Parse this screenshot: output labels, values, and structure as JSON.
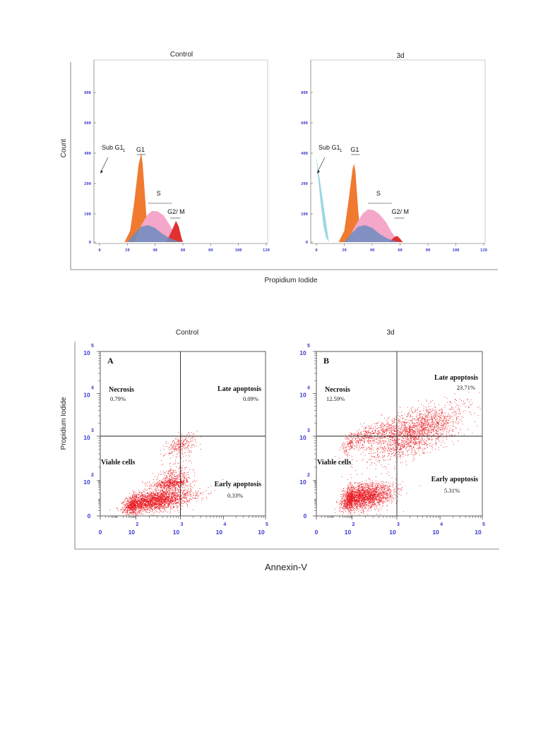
{
  "chart_data": [
    {
      "type": "area",
      "title": "Control",
      "xlabel": "Propidium Iodide",
      "ylabel": "Count",
      "xlim": [
        0,
        120
      ],
      "ylim": [
        0,
        1000
      ],
      "xticks": [
        "0",
        "20",
        "40",
        "60",
        "80",
        "100",
        "120"
      ],
      "yticks": [
        "0",
        "100",
        "200",
        "400",
        "600",
        "800"
      ],
      "phase_labels": [
        "Sub G1",
        "G1",
        "S",
        "G2/ M"
      ],
      "series": [
        {
          "name": "G1",
          "color": "#f07a30",
          "x": [
            18,
            22,
            25,
            28,
            30,
            31,
            33,
            35
          ],
          "values": [
            0,
            40,
            140,
            320,
            400,
            330,
            140,
            0
          ]
        },
        {
          "name": "S",
          "color": "#f4a7c8",
          "x": [
            25,
            30,
            35,
            38,
            42,
            46,
            50,
            54,
            56,
            58
          ],
          "values": [
            0,
            60,
            100,
            110,
            108,
            95,
            65,
            30,
            10,
            0
          ]
        },
        {
          "name": "G2/ M",
          "color": "#e03030",
          "x": [
            48,
            52,
            55,
            57,
            59,
            60
          ],
          "values": [
            0,
            40,
            75,
            55,
            15,
            0
          ]
        },
        {
          "name": "",
          "color": "#6c8cc0",
          "x": [
            20,
            25,
            30,
            35,
            40,
            45,
            50,
            55,
            60
          ],
          "values": [
            0,
            30,
            55,
            60,
            50,
            30,
            15,
            5,
            0
          ]
        }
      ]
    },
    {
      "type": "area",
      "title": "3d",
      "xlabel": "Propidium Iodide",
      "ylabel": "Count",
      "xlim": [
        0,
        120
      ],
      "ylim": [
        0,
        1000
      ],
      "xticks": [
        "0",
        "20",
        "40",
        "60",
        "80",
        "100",
        "120"
      ],
      "yticks": [
        "0",
        "100",
        "200",
        "400",
        "600",
        "800"
      ],
      "phase_labels": [
        "Sub G1",
        "G1",
        "S",
        "G2/ M"
      ],
      "series": [
        {
          "name": "Sub G1",
          "color": "#9ad8e4",
          "x": [
            0,
            1,
            3,
            5,
            7,
            9
          ],
          "values": [
            380,
            260,
            140,
            60,
            15,
            0
          ]
        },
        {
          "name": "G1",
          "color": "#f07a30",
          "x": [
            16,
            20,
            23,
            26,
            27,
            28,
            30,
            32
          ],
          "values": [
            0,
            40,
            140,
            300,
            330,
            280,
            110,
            0
          ]
        },
        {
          "name": "S",
          "color": "#f4a7c8",
          "x": [
            22,
            27,
            33,
            37,
            41,
            45,
            50,
            54,
            58,
            62
          ],
          "values": [
            0,
            50,
            100,
            115,
            112,
            100,
            70,
            35,
            10,
            0
          ]
        },
        {
          "name": "G2/ M",
          "color": "#e03030",
          "x": [
            52,
            56,
            58,
            60,
            62
          ],
          "values": [
            0,
            18,
            22,
            12,
            0
          ]
        },
        {
          "name": "",
          "color": "#6c8cc0",
          "x": [
            20,
            25,
            30,
            35,
            40,
            45,
            50,
            55,
            60
          ],
          "values": [
            0,
            30,
            55,
            60,
            50,
            30,
            15,
            5,
            0
          ]
        }
      ]
    },
    {
      "type": "scatter",
      "title": "Control",
      "panel": "A",
      "xlabel": "Annexin-V",
      "ylabel": "Propidium Iodide",
      "xlim": [
        0,
        5
      ],
      "ylim": [
        0,
        5
      ],
      "ticks": [
        "0",
        "2",
        "3",
        "4",
        "5"
      ],
      "tick_base": "10",
      "gate": [
        3,
        3
      ],
      "quadrants": {
        "necrosis": {
          "label": "Necrosis",
          "value": "0.79%"
        },
        "late": {
          "label": "Late apoptosis",
          "value": "0.09%"
        },
        "viable": {
          "label": "Viable cells",
          "value": ""
        },
        "early": {
          "label": "Early apoptosis",
          "value": "0.33%"
        }
      },
      "clusters": [
        {
          "cx": 2.35,
          "cy": 0.85,
          "sx": 0.45,
          "sy": 0.28,
          "n": 2600
        },
        {
          "cx": 2.8,
          "cy": 1.9,
          "sx": 0.22,
          "sy": 0.18,
          "n": 700
        },
        {
          "cx": 3.0,
          "cy": 2.8,
          "sx": 0.18,
          "sy": 0.12,
          "n": 260
        }
      ]
    },
    {
      "type": "scatter",
      "title": "3d",
      "panel": "B",
      "xlabel": "Annexin-V",
      "ylabel": "Propidium Iodide",
      "xlim": [
        0,
        5
      ],
      "ylim": [
        0,
        5
      ],
      "ticks": [
        "0",
        "2",
        "3",
        "4",
        "5"
      ],
      "tick_base": "10",
      "gate": [
        3,
        3
      ],
      "quadrants": {
        "necrosis": {
          "label": "Necrosis",
          "value": "12.59%"
        },
        "late": {
          "label": "Late apoptosis",
          "value": "23.71%"
        },
        "viable": {
          "label": "Viable cells",
          "value": ""
        },
        "early": {
          "label": "Early apoptosis",
          "value": "5.31%"
        }
      },
      "clusters": [
        {
          "cx": 2.2,
          "cy": 1.1,
          "sx": 0.35,
          "sy": 0.35,
          "n": 2400
        },
        {
          "cx": 3.4,
          "cy": 3.1,
          "sx": 0.55,
          "sy": 0.25,
          "n": 2000
        },
        {
          "cx": 2.3,
          "cy": 3.0,
          "sx": 0.4,
          "sy": 0.12,
          "n": 500
        }
      ]
    }
  ]
}
